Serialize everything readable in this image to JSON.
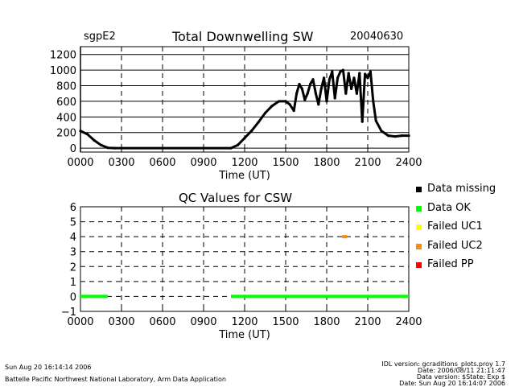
{
  "header": {
    "site": "sgpE2",
    "title": "Total Downwelling SW",
    "date": "20040630"
  },
  "chart_data": [
    {
      "type": "line",
      "title": "Total Downwelling SW",
      "xlabel": "Time (UT)",
      "ylabel": "",
      "xlim": [
        0,
        24
      ],
      "ylim": [
        -50,
        1300
      ],
      "xticks": [
        0,
        3,
        6,
        9,
        12,
        15,
        18,
        21,
        24
      ],
      "xtick_labels": [
        "0000",
        "0300",
        "0600",
        "0900",
        "1200",
        "1500",
        "1800",
        "2100",
        "2400"
      ],
      "yticks": [
        0,
        200,
        400,
        600,
        800,
        1000,
        1200
      ],
      "ytick_labels": [
        "0",
        "200",
        "400",
        "600",
        "800",
        "1000",
        "1200"
      ],
      "series": [
        {
          "name": "Total Downwelling SW",
          "x": [
            0,
            0.5,
            1.0,
            1.5,
            2.0,
            2.5,
            11.0,
            11.5,
            12.0,
            12.5,
            13.0,
            13.5,
            14.0,
            14.5,
            15.0,
            15.3,
            15.6,
            15.8,
            16.0,
            16.2,
            16.4,
            16.6,
            16.8,
            17.0,
            17.2,
            17.4,
            17.6,
            17.8,
            18.0,
            18.2,
            18.4,
            18.6,
            18.8,
            19.0,
            19.2,
            19.4,
            19.6,
            19.8,
            20.0,
            20.2,
            20.4,
            20.6,
            20.8,
            21.0,
            21.2,
            21.4,
            21.6,
            22.0,
            22.5,
            23.0,
            23.5,
            24.0
          ],
          "y": [
            220,
            180,
            100,
            40,
            5,
            0,
            0,
            40,
            130,
            220,
            330,
            450,
            540,
            600,
            600,
            560,
            480,
            700,
            820,
            760,
            620,
            700,
            820,
            880,
            700,
            560,
            760,
            900,
            600,
            880,
            980,
            640,
            900,
            980,
            1000,
            700,
            960,
            760,
            900,
            700,
            960,
            340,
            950,
            900,
            980,
            600,
            350,
            220,
            160,
            150,
            160,
            160
          ]
        }
      ]
    },
    {
      "type": "scatter",
      "title": "QC Values for CSW",
      "xlabel": "Time (UT)",
      "ylabel": "",
      "xlim": [
        0,
        24
      ],
      "ylim": [
        -1,
        6
      ],
      "xticks": [
        0,
        3,
        6,
        9,
        12,
        15,
        18,
        21,
        24
      ],
      "xtick_labels": [
        "0000",
        "0300",
        "0600",
        "0900",
        "1200",
        "1500",
        "1800",
        "2100",
        "2400"
      ],
      "yticks": [
        -1,
        0,
        1,
        2,
        3,
        4,
        5,
        6
      ],
      "ytick_labels": [
        "−1",
        "0",
        "1",
        "2",
        "3",
        "4",
        "5",
        "6"
      ],
      "series": [
        {
          "name": "Data OK",
          "color": "#00ff00",
          "segments": [
            [
              0,
              2
            ],
            [
              11,
              24
            ]
          ],
          "y": 0
        },
        {
          "name": "Failed UC2",
          "color": "#ff8c00",
          "x": [
            19.3
          ],
          "y": [
            4
          ]
        }
      ]
    }
  ],
  "legend": [
    {
      "label": "Data missing",
      "color": "#000000"
    },
    {
      "label": "Data OK",
      "color": "#00ff00"
    },
    {
      "label": "Failed UC1",
      "color": "#ffff00"
    },
    {
      "label": "Failed UC2",
      "color": "#ff8c00"
    },
    {
      "label": "Failed PP",
      "color": "#ff0000"
    }
  ],
  "footer": {
    "timestamp": "Sun Aug 20 16:14:14 2006",
    "organization": "Battelle Pacific Northwest National Laboratory, Arm Data Application",
    "idl_version": "IDL version: gcraditions_plots.proy 1.7",
    "file_date": "Date: 2006/08/11 21:11:47",
    "data_version": "Data version: $State: Exp $",
    "data_date": "Date: Sun Aug 20 16:14:07 2006"
  }
}
